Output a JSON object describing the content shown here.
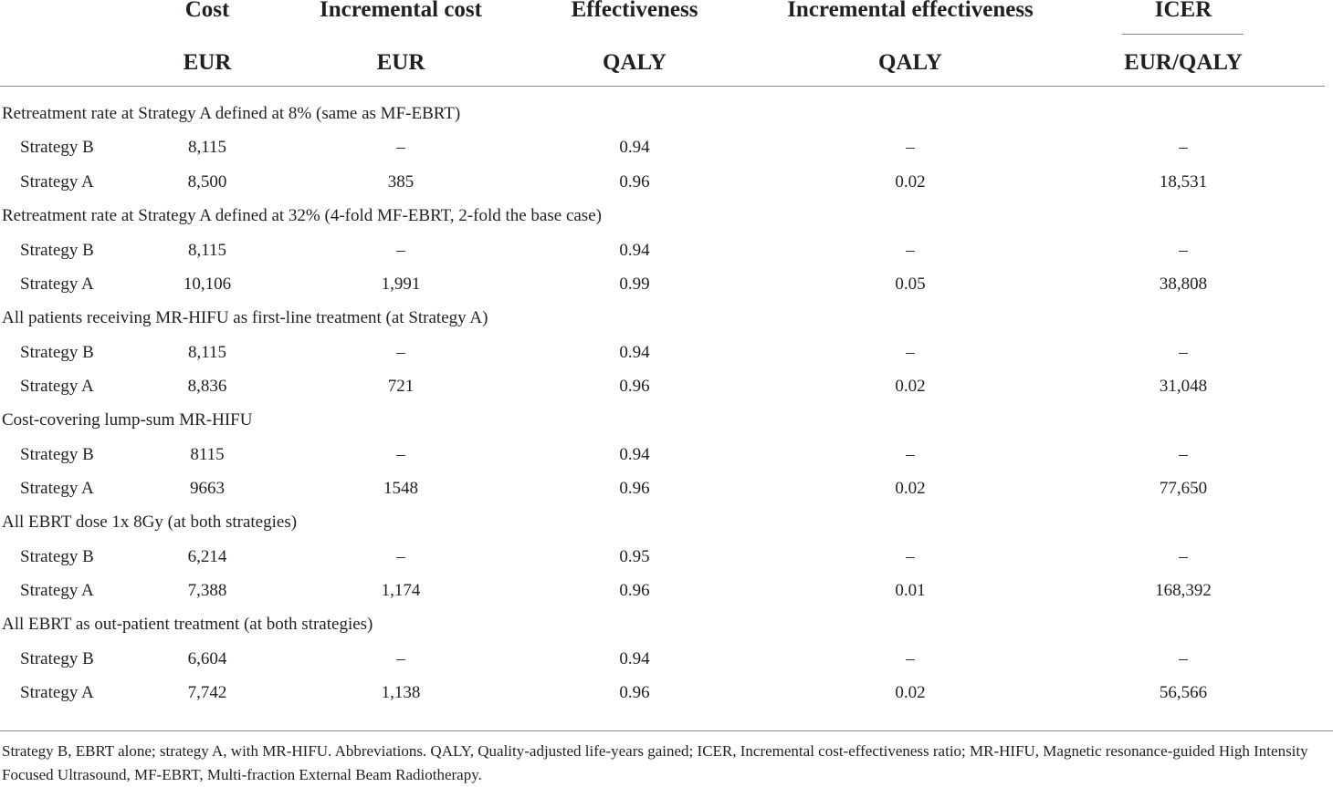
{
  "columns": [
    {
      "header": "Cost",
      "unit": "EUR"
    },
    {
      "header": "Incremental cost",
      "unit": "EUR"
    },
    {
      "header": "Effectiveness",
      "unit": "QALY"
    },
    {
      "header": "Incremental effectiveness",
      "unit": "QALY"
    },
    {
      "header": "ICER",
      "unit": "EUR/QALY"
    }
  ],
  "groups": [
    {
      "title": "Retreatment rate at Strategy A defined at 8% (same as MF-EBRT)",
      "rows": [
        {
          "label": "Strategy B",
          "cells": [
            "8,115",
            "–",
            "0.94",
            "–",
            "–"
          ]
        },
        {
          "label": "Strategy A",
          "cells": [
            "8,500",
            "385",
            "0.96",
            "0.02",
            "18,531"
          ]
        }
      ]
    },
    {
      "title": "Retreatment rate at Strategy A defined at 32% (4-fold MF-EBRT, 2-fold the base case)",
      "rows": [
        {
          "label": "Strategy B",
          "cells": [
            "8,115",
            "–",
            "0.94",
            "–",
            "–"
          ]
        },
        {
          "label": "Strategy A",
          "cells": [
            "10,106",
            "1,991",
            "0.99",
            "0.05",
            "38,808"
          ]
        }
      ]
    },
    {
      "title": "All patients receiving MR-HIFU as first-line treatment (at Strategy A)",
      "rows": [
        {
          "label": "Strategy B",
          "cells": [
            "8,115",
            "–",
            "0.94",
            "–",
            "–"
          ]
        },
        {
          "label": "Strategy A",
          "cells": [
            "8,836",
            "721",
            "0.96",
            "0.02",
            "31,048"
          ]
        }
      ]
    },
    {
      "title": "Cost-covering lump-sum MR-HIFU",
      "rows": [
        {
          "label": "Strategy B",
          "cells": [
            "8115",
            "–",
            "0.94",
            "–",
            "–"
          ]
        },
        {
          "label": "Strategy A",
          "cells": [
            "9663",
            "1548",
            "0.96",
            "0.02",
            "77,650"
          ]
        }
      ]
    },
    {
      "title": "All EBRT dose 1x 8Gy (at both strategies)",
      "rows": [
        {
          "label": "Strategy B",
          "cells": [
            "6,214",
            "–",
            "0.95",
            "–",
            "–"
          ]
        },
        {
          "label": "Strategy A",
          "cells": [
            "7,388",
            "1,174",
            "0.96",
            "0.01",
            "168,392"
          ]
        }
      ]
    },
    {
      "title": "All EBRT as out-patient treatment (at both strategies)",
      "rows": [
        {
          "label": "Strategy B",
          "cells": [
            "6,604",
            "–",
            "0.94",
            "–",
            "–"
          ]
        },
        {
          "label": "Strategy A",
          "cells": [
            "7,742",
            "1,138",
            "0.96",
            "0.02",
            "56,566"
          ]
        }
      ]
    }
  ],
  "footnote": "Strategy B, EBRT alone; strategy A, with MR-HIFU. Abbreviations. QALY, Quality-adjusted life-years gained; ICER, Incremental cost-effectiveness ratio; MR-HIFU, Magnetic resonance-guided High Intensity Focused Ultrasound, MF-EBRT, Multi-fraction External Beam Radiotherapy."
}
